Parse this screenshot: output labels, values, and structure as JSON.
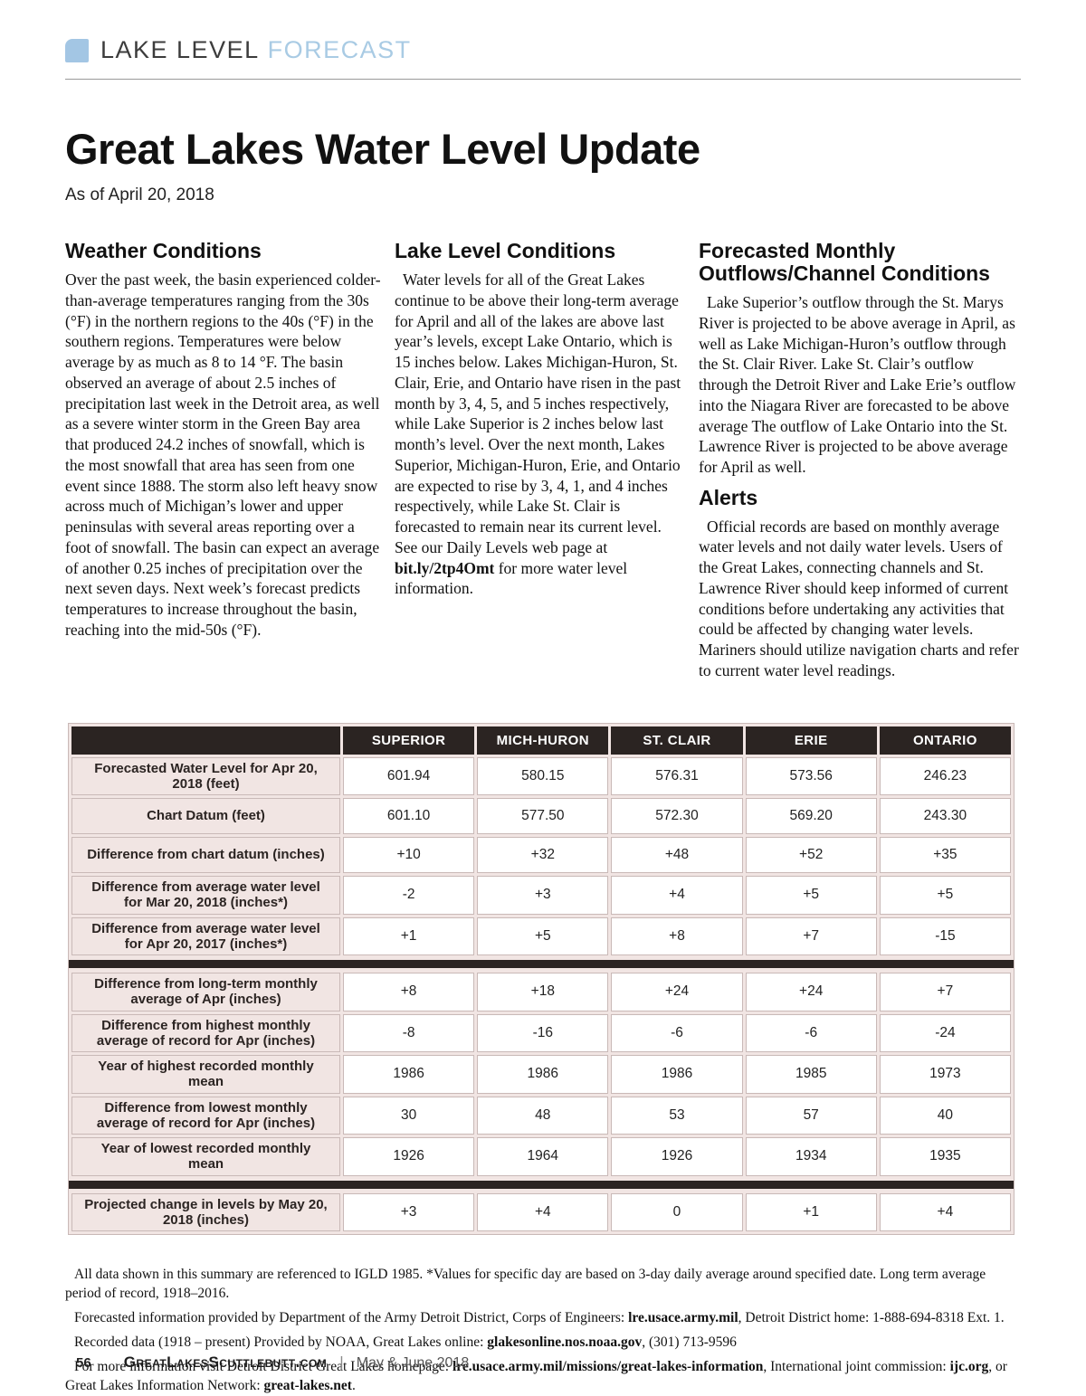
{
  "colors": {
    "accent_blue": "#a9cbe4",
    "kicker_square": "#a3c6e4",
    "table_header_bg": "#2b2422",
    "table_bg_pink": "#f1e5e3",
    "table_border": "#c9b9b7"
  },
  "header": {
    "section_label": "LAKE LEVEL",
    "section_label_accent": "FORECAST"
  },
  "title": "Great Lakes Water Level Update",
  "as_of": "As of April 20, 2018",
  "columns": {
    "weather": {
      "heading": "Weather Conditions",
      "body": [
        {
          "t": "Over the past week, the basin experienced colder-than-average temperatures ranging from the 30s (°F) in the northern regions to the 40s (°F) in the southern regions. Temperatures were below average by as much as 8 to 14 °F. The basin observed an average of about 2.5 inches of precipitation last week in the Detroit area, as well as a severe winter storm in the Green Bay area that produced 24.2 inches of snowfall, which is the most snowfall that area has seen from one event since 1888. The storm also left heavy snow across much of Michigan’s lower and upper peninsulas with several areas reporting over a foot of snowfall. The basin can expect an average of another 0.25 inches of precipitation over the next seven days. Next week’s forecast predicts temperatures to increase throughout the basin, reaching into the mid-50s (°F)."
        }
      ]
    },
    "lake_level": {
      "heading": "Lake Level Conditions",
      "body": [
        {
          "t": "Water levels for all of the Great Lakes continue to be above their long-term average for April and all of the lakes are above last year’s levels, except Lake Ontario, which is 15 inches below. Lakes Michigan-Huron, St. Clair, Erie, and Ontario have risen in the past month by 3, 4, 5, and 5 inches respectively, while Lake Superior is 2 inches below last month’s level. Over the next month, Lakes Superior, Michigan-Huron, Erie, and Ontario are expected to rise by 3, 4, 1, and 4 inches respectively, while Lake St. Clair is forecasted to remain near its current level. See our Daily Levels web page at "
        },
        {
          "t": "bit.ly/2tp4Omt",
          "b": true,
          "link": true
        },
        {
          "t": " for more water level information."
        }
      ]
    },
    "outflows": {
      "heading": "Forecasted Monthly Outflows/Channel Conditions",
      "body": [
        {
          "t": "Lake Superior’s outflow through the St. Marys River is projected to be above average in April, as well as Lake Michigan-Huron’s outflow through the St. Clair River. Lake St. Clair’s outflow through the Detroit River and Lake Erie’s outflow into the Niagara River are forecasted to be above average The outflow of Lake Ontario into the St. Lawrence River is projected to be above average for April as well."
        }
      ]
    },
    "alerts": {
      "heading": "Alerts",
      "body": [
        {
          "t": "Official records are based on monthly average water levels and not daily water levels. Users of the Great Lakes, connecting channels and St. Lawrence River should keep informed of current conditions before undertaking any activities that could be affected by changing water levels. Mariners should utilize navigation charts and refer to current water level readings."
        }
      ]
    }
  },
  "table": {
    "columns": [
      "SUPERIOR",
      "MICH-HURON",
      "ST. CLAIR",
      "ERIE",
      "ONTARIO"
    ],
    "rows": [
      {
        "label": "Forecasted Water Level for Apr 20, 2018 (feet)",
        "values": [
          "601.94",
          "580.15",
          "576.31",
          "573.56",
          "246.23"
        ]
      },
      {
        "label": "Chart Datum (feet)",
        "values": [
          "601.10",
          "577.50",
          "572.30",
          "569.20",
          "243.30"
        ]
      },
      {
        "label": "Difference from chart datum (inches)",
        "values": [
          "+10",
          "+32",
          "+48",
          "+52",
          "+35"
        ]
      },
      {
        "label": "Difference from average water level for Mar 20, 2018 (inches*)",
        "values": [
          "-2",
          "+3",
          "+4",
          "+5",
          "+5"
        ]
      },
      {
        "label": "Difference from average water level for Apr 20, 2017 (inches*)",
        "values": [
          "+1",
          "+5",
          "+8",
          "+7",
          "-15"
        ]
      },
      {
        "separator": true
      },
      {
        "label": "Difference from long-term monthly average of Apr (inches)",
        "values": [
          "+8",
          "+18",
          "+24",
          "+24",
          "+7"
        ]
      },
      {
        "label": "Difference from highest monthly average of record for Apr (inches)",
        "values": [
          "-8",
          "-16",
          "-6",
          "-6",
          "-24"
        ]
      },
      {
        "label": "Year of highest recorded monthly mean",
        "values": [
          "1986",
          "1986",
          "1986",
          "1985",
          "1973"
        ]
      },
      {
        "label": "Difference from lowest monthly average of record for Apr (inches)",
        "values": [
          "30",
          "48",
          "53",
          "57",
          "40"
        ]
      },
      {
        "label": "Year of lowest recorded monthly mean",
        "values": [
          "1926",
          "1964",
          "1926",
          "1934",
          "1935"
        ]
      },
      {
        "separator": true
      },
      {
        "label": "Projected change in levels by May 20, 2018 (inches)",
        "values": [
          "+3",
          "+4",
          "0",
          "+1",
          "+4"
        ]
      }
    ]
  },
  "notes": [
    [
      {
        "t": "All data shown in this summary are referenced to IGLD 1985.  *Values for specific day are based on 3-day daily average around specified date. Long term average period of record, 1918–2016."
      }
    ],
    [
      {
        "t": "Forecasted information provided by Department of the Army Detroit District, Corps of Engineers: "
      },
      {
        "t": "lre.usace.army.mil",
        "b": true,
        "link": true
      },
      {
        "t": ", Detroit District home: 1-888-694-8318 Ext. 1."
      }
    ],
    [
      {
        "t": "Recorded data (1918 – present) Provided by NOAA, Great Lakes online: "
      },
      {
        "t": "glakesonline.nos.noaa.gov",
        "b": true,
        "link": true
      },
      {
        "t": ", (301) 713-9596"
      }
    ],
    [
      {
        "t": "For more information visit Detroit District Great Lakes homepage: "
      },
      {
        "t": "lre.usace.army.mil/missions/great-lakes-information",
        "b": true,
        "link": true
      },
      {
        "t": ", International joint commission: "
      },
      {
        "t": "ijc.org",
        "b": true,
        "link": true
      },
      {
        "t": ", or Great Lakes Information Network: "
      },
      {
        "t": "great-lakes.net",
        "b": true,
        "link": true
      },
      {
        "t": "."
      }
    ]
  ],
  "footer": {
    "page_number": "56",
    "site": "GreatLakesScuttlebutt.com",
    "divider": "|",
    "issue": "May & June 2018"
  }
}
